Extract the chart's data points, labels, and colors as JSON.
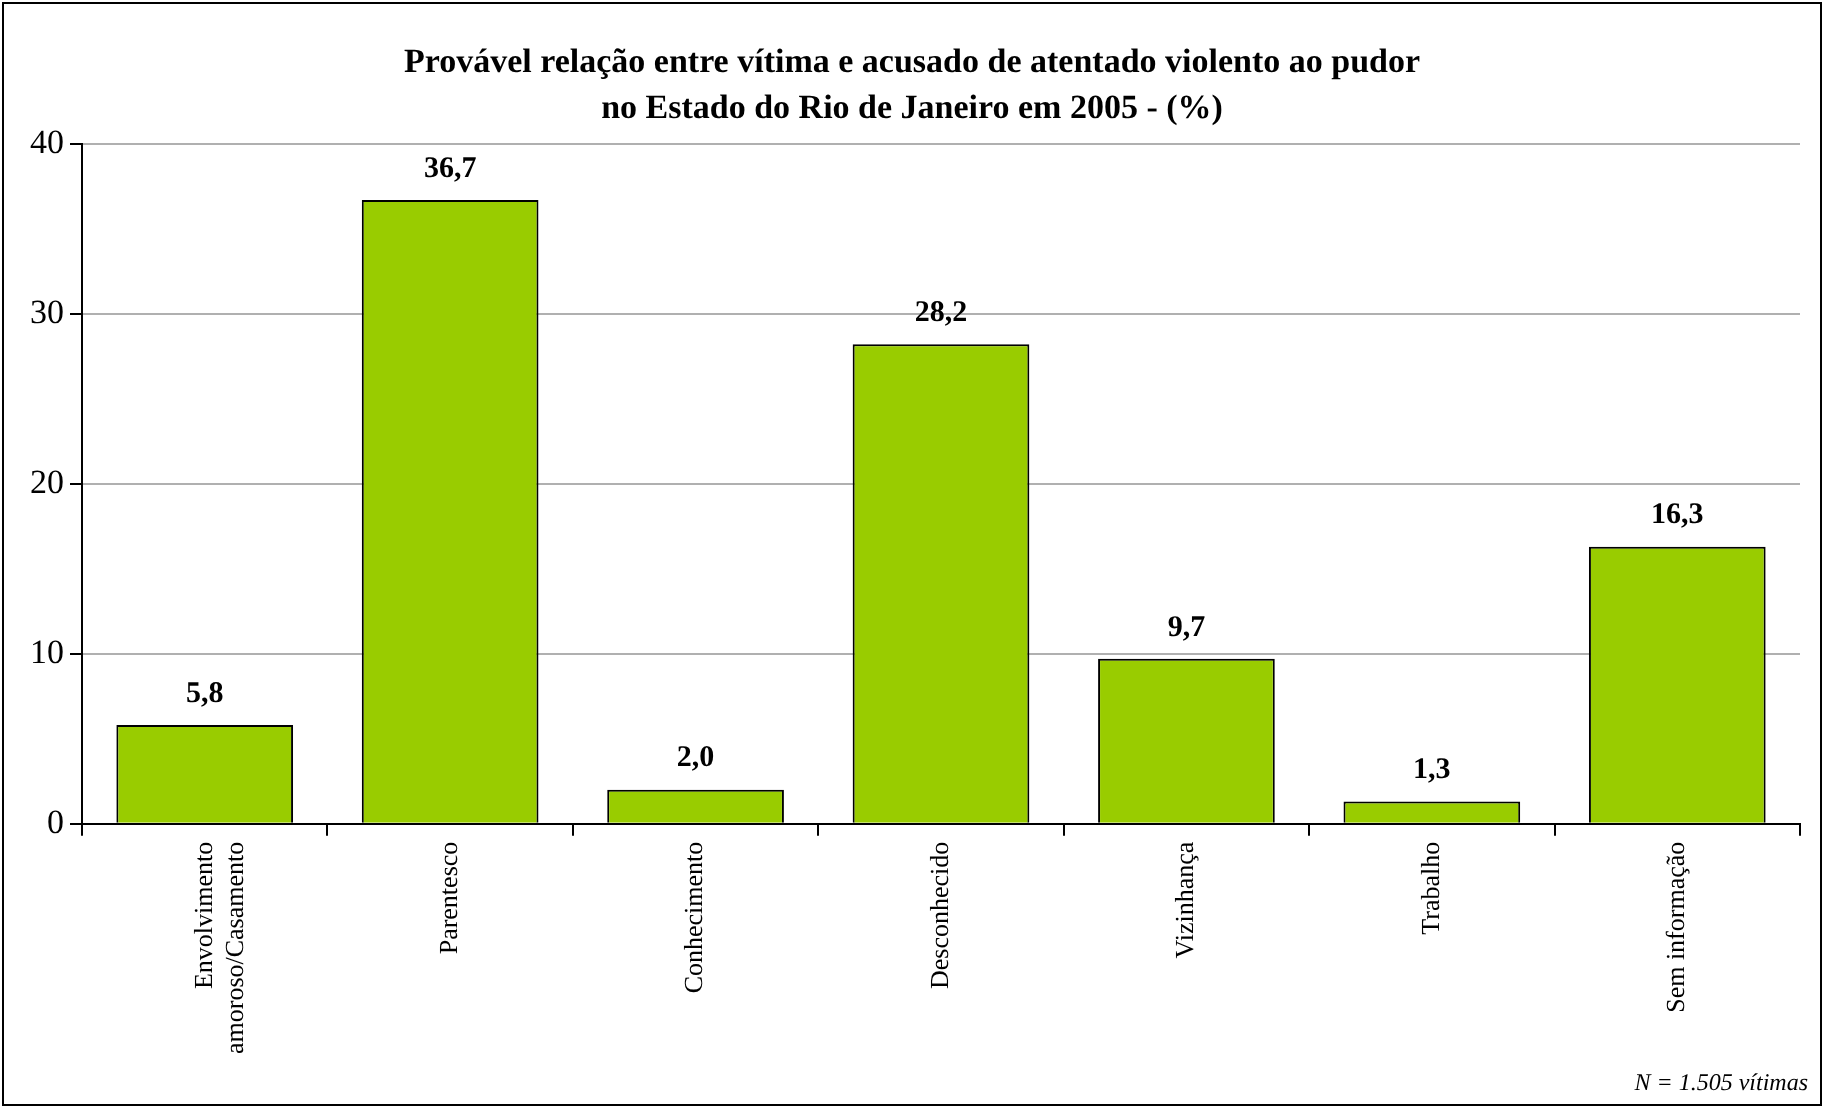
{
  "chart_data": {
    "type": "bar",
    "title": "Provável relação entre vítima e acusado de atentado violento ao pudor\nno Estado do Rio de Janeiro em 2005 - (%)",
    "categories": [
      "Envolvimento\namoroso/Casamento",
      "Parentesco",
      "Conhecimento",
      "Desconhecido",
      "Vizinhança",
      "Trabalho",
      "Sem informação"
    ],
    "values": [
      5.8,
      36.7,
      2.0,
      28.2,
      9.7,
      1.3,
      16.3
    ],
    "value_labels": [
      "5,8",
      "36,7",
      "2,0",
      "28,2",
      "9,7",
      "1,3",
      "16,3"
    ],
    "color": "#99cc00",
    "ylim": [
      0,
      40
    ],
    "yticks": [
      0,
      10,
      20,
      30,
      40
    ],
    "grid": "y",
    "legend": false,
    "annotations": [
      "N = 1.505 vítimas"
    ]
  }
}
